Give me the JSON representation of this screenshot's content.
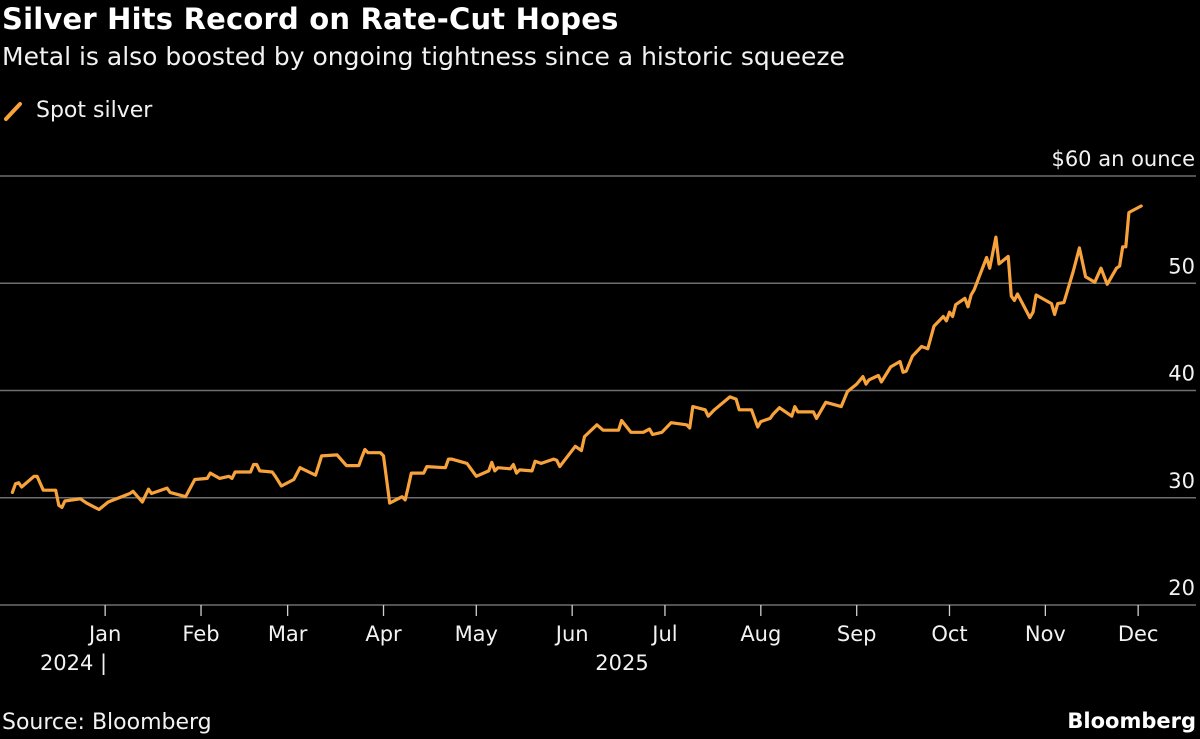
{
  "title": "Silver Hits Record on Rate-Cut Hopes",
  "subtitle": "Metal is also boosted by ongoing tightness since a historic squeeze",
  "source": "Source: Bloomberg",
  "brand": "Bloomberg",
  "colors": {
    "background": "#000000",
    "series": "#f7a23b",
    "grid": "#6e6e6e",
    "text": "#f2f2f2"
  },
  "chart_data": {
    "type": "line",
    "title": "Silver Hits Record on Rate-Cut Hopes",
    "subtitle": "Metal is also boosted by ongoing tightness since a historic squeeze",
    "legend": {
      "placement": "top-left",
      "entries": [
        "Spot silver"
      ]
    },
    "ylabel_top": "$60 an ounce",
    "ylim": [
      20,
      60
    ],
    "yticks": [
      {
        "value": 60,
        "label": "$60 an ounce"
      },
      {
        "value": 50,
        "label": "50"
      },
      {
        "value": 40,
        "label": "40"
      },
      {
        "value": 30,
        "label": "30"
      },
      {
        "value": 20,
        "label": "20"
      }
    ],
    "xlim": [
      "2024-11-28",
      "2025-12-21"
    ],
    "xticks": [
      {
        "date": "2025-01-01",
        "label": "Jan"
      },
      {
        "date": "2025-02-01",
        "label": "Feb"
      },
      {
        "date": "2025-03-01",
        "label": "Mar"
      },
      {
        "date": "2025-04-01",
        "label": "Apr"
      },
      {
        "date": "2025-05-01",
        "label": "May"
      },
      {
        "date": "2025-06-01",
        "label": "Jun"
      },
      {
        "date": "2025-07-01",
        "label": "Jul"
      },
      {
        "date": "2025-08-01",
        "label": "Aug"
      },
      {
        "date": "2025-09-01",
        "label": "Sep"
      },
      {
        "date": "2025-10-01",
        "label": "Oct"
      },
      {
        "date": "2025-11-01",
        "label": "Nov"
      },
      {
        "date": "2025-12-01",
        "label": "Dec"
      }
    ],
    "year_labels": [
      "2024 |",
      "2025"
    ],
    "grid": "horizontal",
    "series": [
      {
        "name": "Spot silver",
        "points": [
          [
            "2024-12-02",
            30.5
          ],
          [
            "2024-12-03",
            31.3
          ],
          [
            "2024-12-04",
            31.4
          ],
          [
            "2024-12-05",
            31.0
          ],
          [
            "2024-12-09",
            32.0
          ],
          [
            "2024-12-10",
            32.0
          ],
          [
            "2024-12-12",
            30.7
          ],
          [
            "2024-12-16",
            30.7
          ],
          [
            "2024-12-17",
            29.3
          ],
          [
            "2024-12-18",
            29.1
          ],
          [
            "2024-12-19",
            29.7
          ],
          [
            "2024-12-24",
            29.9
          ],
          [
            "2024-12-26",
            29.5
          ],
          [
            "2024-12-30",
            28.9
          ],
          [
            "2025-01-02",
            29.6
          ],
          [
            "2025-01-09",
            30.4
          ],
          [
            "2025-01-10",
            30.6
          ],
          [
            "2025-01-13",
            29.6
          ],
          [
            "2025-01-15",
            30.8
          ],
          [
            "2025-01-16",
            30.4
          ],
          [
            "2025-01-21",
            30.9
          ],
          [
            "2025-01-22",
            30.5
          ],
          [
            "2025-01-27",
            30.1
          ],
          [
            "2025-01-30",
            31.7
          ],
          [
            "2025-02-03",
            31.8
          ],
          [
            "2025-02-04",
            32.3
          ],
          [
            "2025-02-07",
            31.8
          ],
          [
            "2025-02-10",
            32.0
          ],
          [
            "2025-02-11",
            31.8
          ],
          [
            "2025-02-12",
            32.4
          ],
          [
            "2025-02-17",
            32.4
          ],
          [
            "2025-02-18",
            33.1
          ],
          [
            "2025-02-19",
            33.1
          ],
          [
            "2025-02-20",
            32.5
          ],
          [
            "2025-02-24",
            32.4
          ],
          [
            "2025-02-25",
            32.0
          ],
          [
            "2025-02-27",
            31.1
          ],
          [
            "2025-03-03",
            31.7
          ],
          [
            "2025-03-05",
            32.8
          ],
          [
            "2025-03-10",
            32.1
          ],
          [
            "2025-03-11",
            33.0
          ],
          [
            "2025-03-12",
            33.9
          ],
          [
            "2025-03-17",
            34.0
          ],
          [
            "2025-03-20",
            33.0
          ],
          [
            "2025-03-24",
            33.0
          ],
          [
            "2025-03-25",
            33.8
          ],
          [
            "2025-03-26",
            34.5
          ],
          [
            "2025-03-27",
            34.2
          ],
          [
            "2025-03-31",
            34.2
          ],
          [
            "2025-04-01",
            33.9
          ],
          [
            "2025-04-03",
            29.5
          ],
          [
            "2025-04-07",
            30.1
          ],
          [
            "2025-04-08",
            29.8
          ],
          [
            "2025-04-09",
            31.0
          ],
          [
            "2025-04-10",
            32.3
          ],
          [
            "2025-04-14",
            32.3
          ],
          [
            "2025-04-15",
            32.9
          ],
          [
            "2025-04-21",
            32.8
          ],
          [
            "2025-04-22",
            33.6
          ],
          [
            "2025-04-23",
            33.6
          ],
          [
            "2025-04-28",
            33.2
          ],
          [
            "2025-05-01",
            32.0
          ],
          [
            "2025-05-05",
            32.5
          ],
          [
            "2025-05-06",
            33.3
          ],
          [
            "2025-05-07",
            32.5
          ],
          [
            "2025-05-08",
            32.8
          ],
          [
            "2025-05-12",
            32.7
          ],
          [
            "2025-05-13",
            33.1
          ],
          [
            "2025-05-14",
            32.3
          ],
          [
            "2025-05-15",
            32.6
          ],
          [
            "2025-05-19",
            32.5
          ],
          [
            "2025-05-20",
            33.4
          ],
          [
            "2025-05-22",
            33.2
          ],
          [
            "2025-05-26",
            33.6
          ],
          [
            "2025-05-27",
            33.5
          ],
          [
            "2025-05-28",
            32.9
          ],
          [
            "2025-05-29",
            33.3
          ],
          [
            "2025-06-02",
            34.8
          ],
          [
            "2025-06-04",
            34.4
          ],
          [
            "2025-06-05",
            35.7
          ],
          [
            "2025-06-09",
            36.8
          ],
          [
            "2025-06-11",
            36.3
          ],
          [
            "2025-06-16",
            36.3
          ],
          [
            "2025-06-17",
            37.2
          ],
          [
            "2025-06-20",
            36.1
          ],
          [
            "2025-06-24",
            36.1
          ],
          [
            "2025-06-26",
            36.4
          ],
          [
            "2025-06-27",
            35.9
          ],
          [
            "2025-06-30",
            36.1
          ],
          [
            "2025-07-03",
            37.0
          ],
          [
            "2025-07-08",
            36.8
          ],
          [
            "2025-07-09",
            36.5
          ],
          [
            "2025-07-10",
            38.5
          ],
          [
            "2025-07-14",
            38.2
          ],
          [
            "2025-07-15",
            37.6
          ],
          [
            "2025-07-17",
            38.2
          ],
          [
            "2025-07-22",
            39.4
          ],
          [
            "2025-07-24",
            39.2
          ],
          [
            "2025-07-25",
            38.2
          ],
          [
            "2025-07-29",
            38.2
          ],
          [
            "2025-07-31",
            36.6
          ],
          [
            "2025-08-01",
            37.1
          ],
          [
            "2025-08-04",
            37.4
          ],
          [
            "2025-08-05",
            37.8
          ],
          [
            "2025-08-07",
            38.4
          ],
          [
            "2025-08-11",
            37.6
          ],
          [
            "2025-08-12",
            38.5
          ],
          [
            "2025-08-13",
            38.0
          ],
          [
            "2025-08-18",
            38.0
          ],
          [
            "2025-08-19",
            37.4
          ],
          [
            "2025-08-22",
            38.9
          ],
          [
            "2025-08-27",
            38.5
          ],
          [
            "2025-08-29",
            39.9
          ],
          [
            "2025-09-01",
            40.6
          ],
          [
            "2025-09-03",
            41.3
          ],
          [
            "2025-09-04",
            40.6
          ],
          [
            "2025-09-05",
            41.0
          ],
          [
            "2025-09-08",
            41.4
          ],
          [
            "2025-09-09",
            40.8
          ],
          [
            "2025-09-12",
            42.2
          ],
          [
            "2025-09-15",
            42.7
          ],
          [
            "2025-09-16",
            41.7
          ],
          [
            "2025-09-17",
            41.8
          ],
          [
            "2025-09-19",
            43.2
          ],
          [
            "2025-09-22",
            44.1
          ],
          [
            "2025-09-24",
            43.9
          ],
          [
            "2025-09-26",
            46.0
          ],
          [
            "2025-09-29",
            46.9
          ],
          [
            "2025-09-30",
            46.5
          ],
          [
            "2025-10-01",
            47.3
          ],
          [
            "2025-10-02",
            46.9
          ],
          [
            "2025-10-03",
            48.0
          ],
          [
            "2025-10-06",
            48.6
          ],
          [
            "2025-10-07",
            47.8
          ],
          [
            "2025-10-08",
            48.9
          ],
          [
            "2025-10-09",
            49.4
          ],
          [
            "2025-10-13",
            52.4
          ],
          [
            "2025-10-14",
            51.4
          ],
          [
            "2025-10-16",
            54.3
          ],
          [
            "2025-10-17",
            51.8
          ],
          [
            "2025-10-20",
            52.5
          ],
          [
            "2025-10-21",
            48.8
          ],
          [
            "2025-10-22",
            48.4
          ],
          [
            "2025-10-23",
            49.0
          ],
          [
            "2025-10-27",
            46.8
          ],
          [
            "2025-10-28",
            47.3
          ],
          [
            "2025-10-29",
            48.9
          ],
          [
            "2025-11-03",
            48.1
          ],
          [
            "2025-11-04",
            47.1
          ],
          [
            "2025-11-05",
            48.1
          ],
          [
            "2025-11-07",
            48.2
          ],
          [
            "2025-11-10",
            51.1
          ],
          [
            "2025-11-12",
            53.3
          ],
          [
            "2025-11-14",
            50.6
          ],
          [
            "2025-11-17",
            50.1
          ],
          [
            "2025-11-19",
            51.4
          ],
          [
            "2025-11-21",
            49.9
          ],
          [
            "2025-11-24",
            51.4
          ],
          [
            "2025-11-25",
            51.6
          ],
          [
            "2025-11-26",
            53.4
          ],
          [
            "2025-11-27",
            53.4
          ],
          [
            "2025-11-28",
            56.6
          ],
          [
            "2025-12-02",
            57.2
          ]
        ]
      }
    ]
  }
}
